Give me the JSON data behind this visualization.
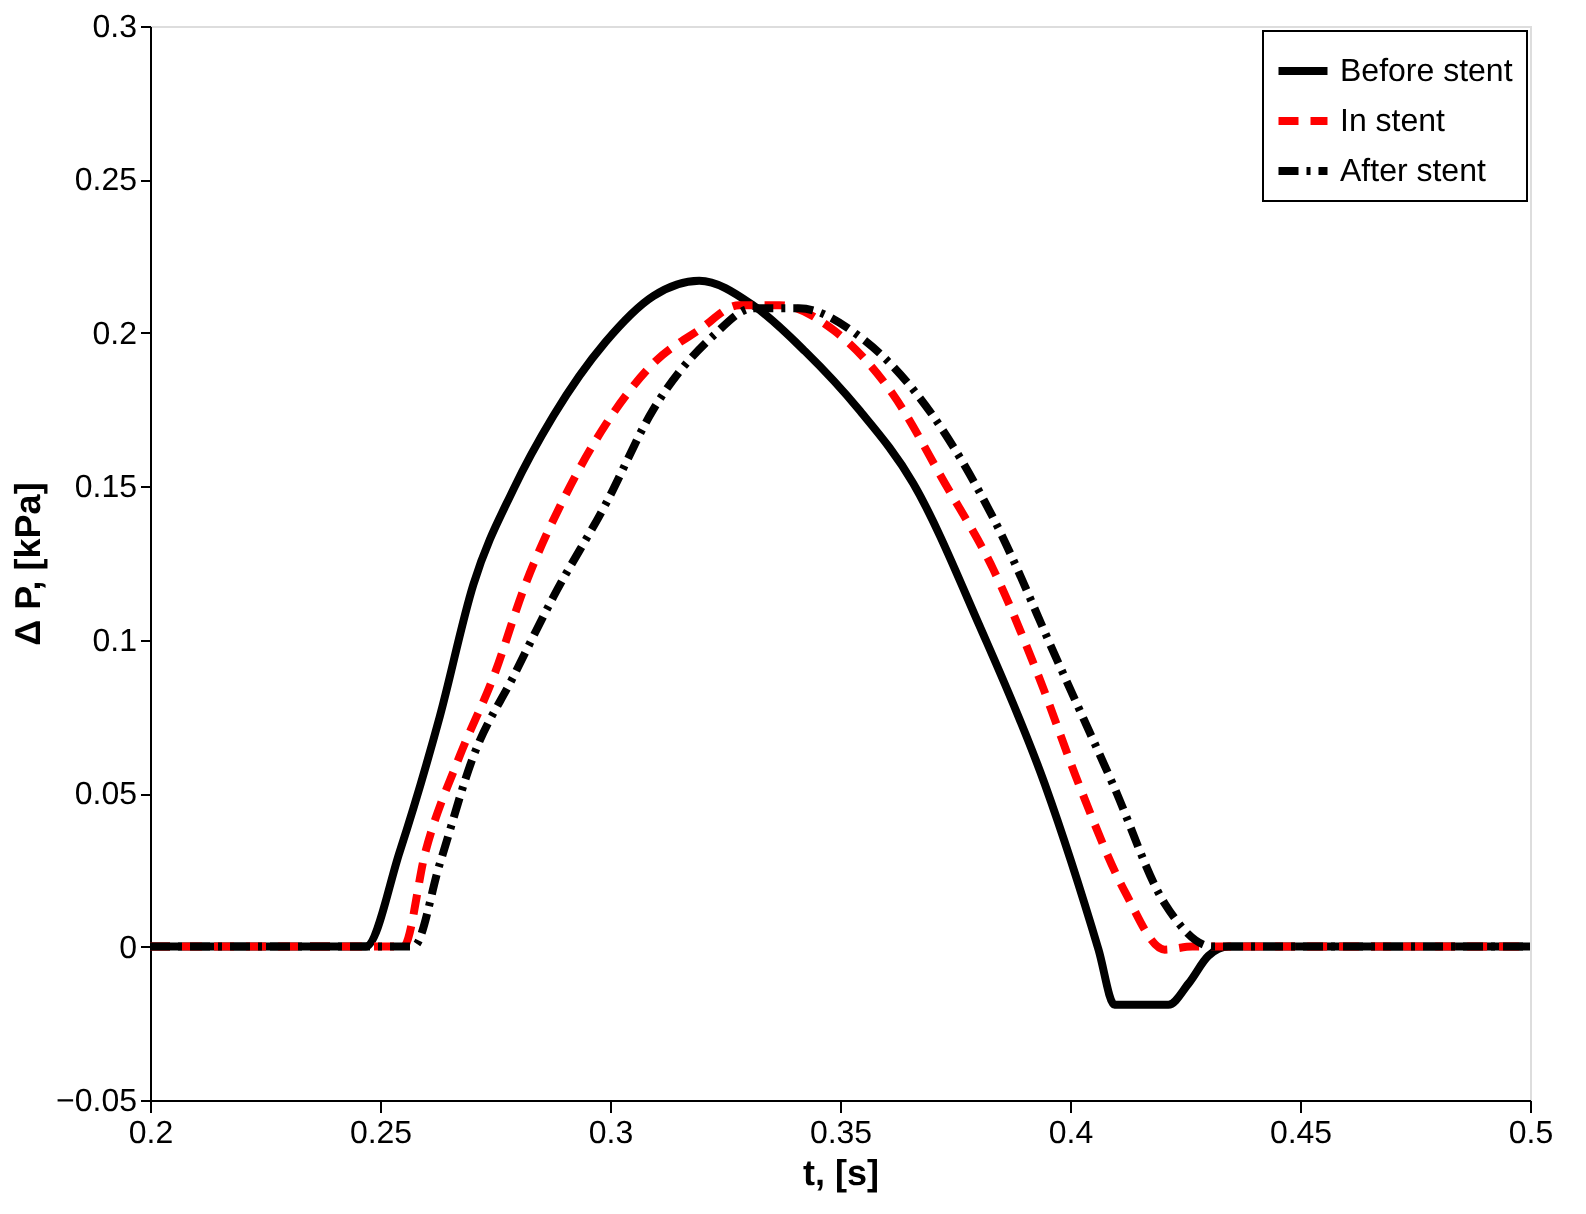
{
  "chart_data": {
    "type": "line",
    "xlabel": "t, [s]",
    "ylabel": "Δ P, [kPa]",
    "xlim": [
      0.2,
      0.5
    ],
    "xticks": [
      0.2,
      0.25,
      0.3,
      0.35,
      0.4,
      0.45,
      0.5
    ],
    "ylim": [
      -0.05,
      0.3
    ],
    "yticks": [
      -0.05,
      0,
      0.05,
      0.1,
      0.15,
      0.2,
      0.25,
      0.3
    ],
    "grid": false,
    "legend": "top right",
    "marker": "none",
    "series": [
      {
        "name": "Before stent",
        "color": "#000000",
        "line_style": "solid",
        "x": [
          0.2,
          0.2469,
          0.2543,
          0.263,
          0.2703,
          0.279,
          0.2877,
          0.299,
          0.3094,
          0.3194,
          0.3311,
          0.3424,
          0.3541,
          0.3659,
          0.3802,
          0.3945,
          0.4062,
          0.4097,
          0.4214,
          0.4258,
          0.4301,
          0.4345,
          0.5
        ],
        "values": [
          0,
          0,
          0.031,
          0.075,
          0.118,
          0.149,
          0.173,
          0.197,
          0.212,
          0.217,
          0.209,
          0.194,
          0.175,
          0.151,
          0.105,
          0.053,
          -0.001,
          -0.019,
          -0.019,
          -0.012,
          -0.003,
          0,
          0
        ]
      },
      {
        "name": "In stent",
        "color": "#ff0000",
        "line_style": "dashed",
        "x": [
          0.2,
          0.2551,
          0.2599,
          0.2673,
          0.2747,
          0.2816,
          0.2903,
          0.299,
          0.3094,
          0.3194,
          0.3281,
          0.3368,
          0.3485,
          0.3615,
          0.3728,
          0.3833,
          0.3932,
          0.4019,
          0.4119,
          0.4206,
          0.4266,
          0.5
        ],
        "values": [
          0,
          0,
          0.031,
          0.062,
          0.088,
          0.118,
          0.147,
          0.17,
          0.19,
          0.201,
          0.209,
          0.209,
          0.201,
          0.18,
          0.151,
          0.123,
          0.088,
          0.053,
          0.018,
          -0.001,
          0,
          0
        ]
      },
      {
        "name": "After stent",
        "color": "#000000",
        "line_style": "dashdot",
        "x": [
          0.2,
          0.2573,
          0.263,
          0.2703,
          0.279,
          0.2877,
          0.299,
          0.3094,
          0.3224,
          0.3311,
          0.3411,
          0.3541,
          0.3702,
          0.3832,
          0.3976,
          0.4093,
          0.4206,
          0.431,
          0.5
        ],
        "values": [
          0,
          0,
          0.027,
          0.062,
          0.088,
          0.114,
          0.144,
          0.175,
          0.199,
          0.208,
          0.208,
          0.199,
          0.173,
          0.14,
          0.092,
          0.053,
          0.014,
          0,
          0
        ]
      }
    ]
  }
}
